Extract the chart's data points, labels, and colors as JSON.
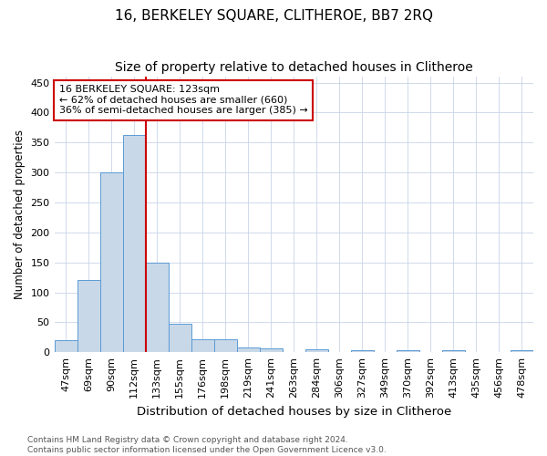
{
  "title": "16, BERKELEY SQUARE, CLITHEROE, BB7 2RQ",
  "subtitle": "Size of property relative to detached houses in Clitheroe",
  "xlabel": "Distribution of detached houses by size in Clitheroe",
  "ylabel": "Number of detached properties",
  "footer_line1": "Contains HM Land Registry data © Crown copyright and database right 2024.",
  "footer_line2": "Contains public sector information licensed under the Open Government Licence v3.0.",
  "bar_labels": [
    "47sqm",
    "69sqm",
    "90sqm",
    "112sqm",
    "133sqm",
    "155sqm",
    "176sqm",
    "198sqm",
    "219sqm",
    "241sqm",
    "263sqm",
    "284sqm",
    "306sqm",
    "327sqm",
    "349sqm",
    "370sqm",
    "392sqm",
    "413sqm",
    "435sqm",
    "456sqm",
    "478sqm"
  ],
  "bar_values": [
    20,
    121,
    300,
    362,
    150,
    47,
    22,
    22,
    8,
    6,
    0,
    5,
    0,
    3,
    0,
    3,
    0,
    3,
    0,
    0,
    4
  ],
  "bar_color": "#c8d8e8",
  "bar_edge_color": "#5b9bd5",
  "property_label": "16 BERKELEY SQUARE: 123sqm",
  "pct_smaller": 62,
  "n_smaller": 660,
  "pct_larger_semi": 36,
  "n_larger_semi": 385,
  "vline_bin_index": 3,
  "vline_color": "#cc0000",
  "annotation_box_color": "#cc0000",
  "ylim": [
    0,
    460
  ],
  "yticks": [
    0,
    50,
    100,
    150,
    200,
    250,
    300,
    350,
    400,
    450
  ],
  "title_fontsize": 11,
  "subtitle_fontsize": 10,
  "xlabel_fontsize": 9.5,
  "ylabel_fontsize": 8.5,
  "tick_fontsize": 8,
  "annotation_fontsize": 8,
  "footer_fontsize": 6.5
}
